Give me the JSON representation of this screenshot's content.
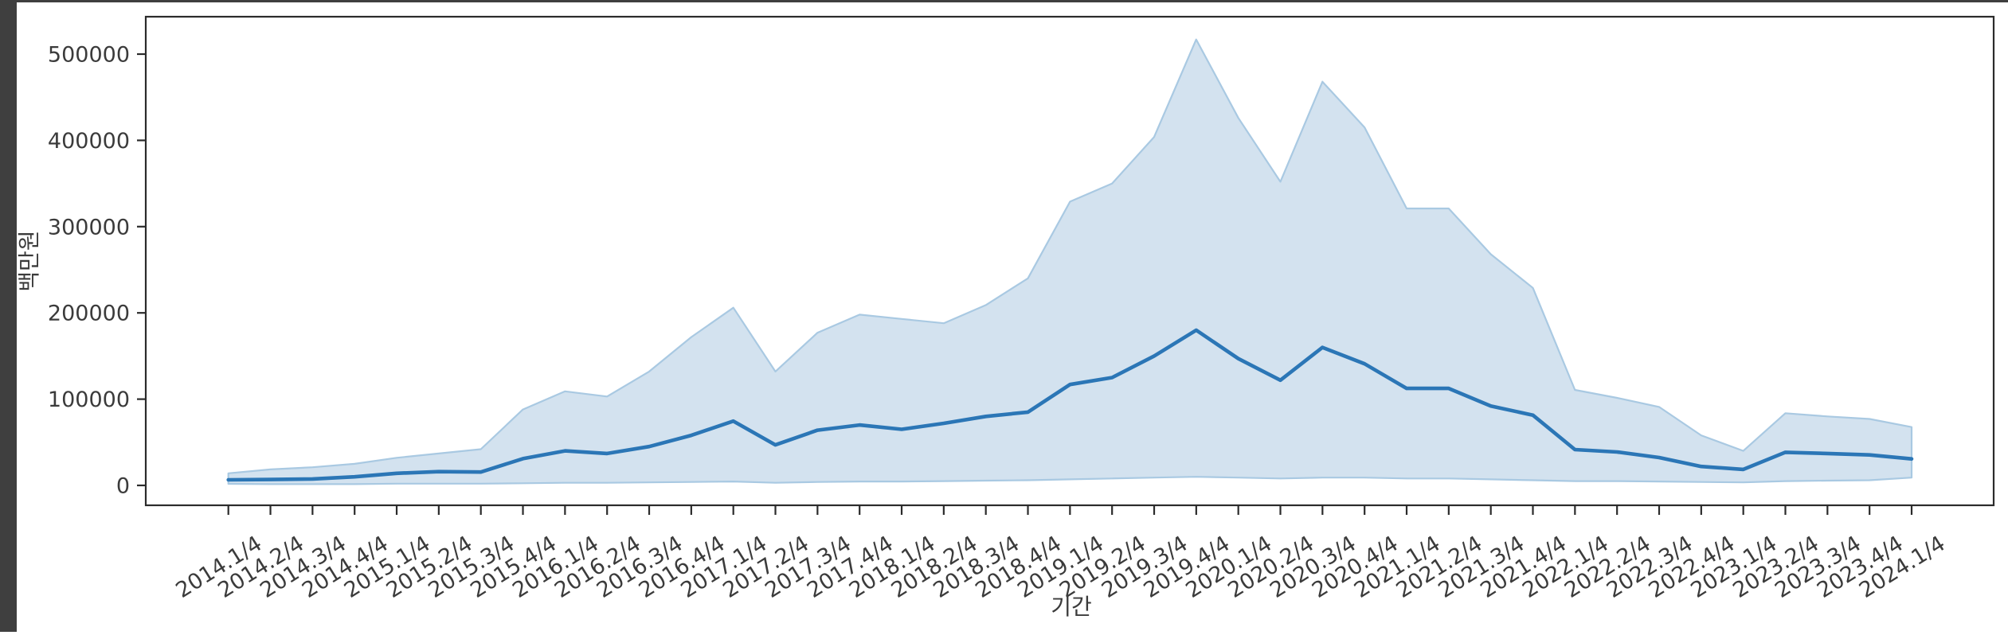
{
  "chart_data": {
    "type": "line",
    "title": "",
    "xlabel": "기간",
    "ylabel": "백만원",
    "legend": "none",
    "grid": false,
    "x_categories": [
      "2014.1/4",
      "2014.2/4",
      "2014.3/4",
      "2014.4/4",
      "2015.1/4",
      "2015.2/4",
      "2015.3/4",
      "2015.4/4",
      "2016.1/4",
      "2016.2/4",
      "2016.3/4",
      "2016.4/4",
      "2017.1/4",
      "2017.2/4",
      "2017.3/4",
      "2017.4/4",
      "2018.1/4",
      "2018.2/4",
      "2018.3/4",
      "2018.4/4",
      "2019.1/4",
      "2019.2/4",
      "2019.3/4",
      "2019.4/4",
      "2020.1/4",
      "2020.2/4",
      "2020.3/4",
      "2020.4/4",
      "2021.1/4",
      "2021.2/4",
      "2021.3/4",
      "2021.4/4",
      "2022.1/4",
      "2022.2/4",
      "2022.3/4",
      "2022.4/4",
      "2023.1/4",
      "2023.2/4",
      "2023.3/4",
      "2023.4/4",
      "2024.1/4"
    ],
    "series": [
      {
        "name": "median-line",
        "values": [
          6500,
          6800,
          7500,
          10000,
          14000,
          16000,
          15500,
          31000,
          40000,
          37000,
          45000,
          58000,
          74500,
          47000,
          64000,
          70000,
          65000,
          72000,
          80000,
          85000,
          117000,
          125000,
          150000,
          180000,
          147000,
          122000,
          160000,
          141000,
          112500,
          112500,
          92000,
          81500,
          41500,
          38700,
          32300,
          22000,
          18500,
          38400,
          37000,
          35300,
          30700
        ]
      },
      {
        "name": "band-upper",
        "values": [
          14000,
          18500,
          21000,
          25000,
          32000,
          37000,
          42000,
          88000,
          109000,
          103000,
          132000,
          172000,
          206000,
          132000,
          177000,
          198000,
          193000,
          188000,
          209000,
          240000,
          329000,
          350000,
          404000,
          517000,
          426000,
          352000,
          468000,
          415000,
          321000,
          321000,
          268000,
          229000,
          110700,
          101500,
          91000,
          58000,
          40000,
          83700,
          80000,
          77000,
          67600
        ]
      },
      {
        "name": "band-lower",
        "values": [
          1800,
          1500,
          1500,
          1500,
          2000,
          2000,
          2000,
          2500,
          3000,
          3000,
          3500,
          4000,
          4500,
          3000,
          4000,
          4500,
          4500,
          5000,
          5500,
          6000,
          7000,
          8000,
          9000,
          10000,
          9000,
          8000,
          9000,
          9000,
          8000,
          8000,
          7000,
          6000,
          5000,
          5000,
          4500,
          4000,
          3500,
          5000,
          5500,
          6000,
          9000
        ]
      }
    ],
    "yticks": [
      0,
      100000,
      200000,
      300000,
      400000,
      500000
    ],
    "ytick_labels": [
      "0",
      "100000",
      "200000",
      "300000",
      "400000",
      "500000"
    ],
    "ylim": [
      -25000,
      545000
    ],
    "colors": {
      "line": "#2b76b6",
      "band_fill": "#d3e2ef",
      "band_edge": "#a9c9e2",
      "axis": "#2b2b2b",
      "tick_text": "#3b3b3b",
      "window_edge": "#3f3f3f"
    }
  }
}
